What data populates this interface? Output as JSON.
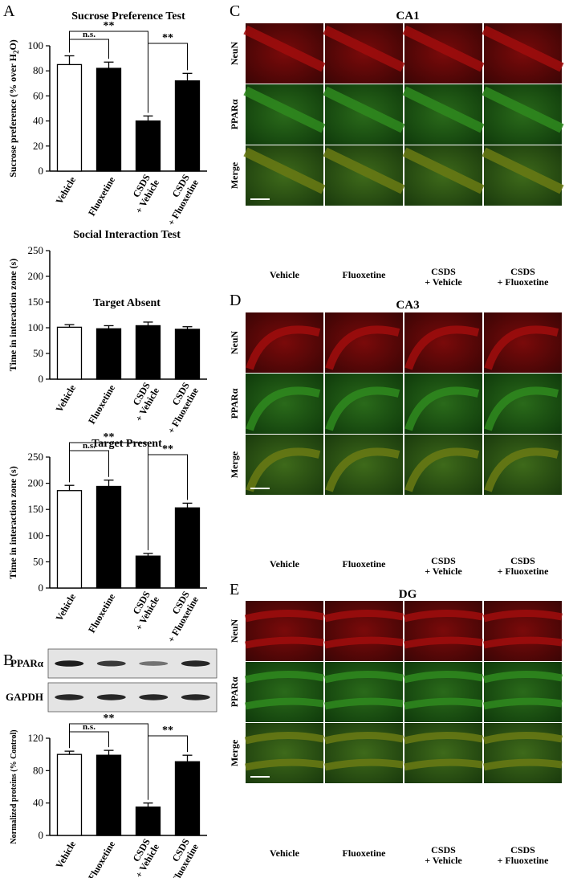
{
  "panel_letters": {
    "A": "A",
    "B": "B",
    "C": "C",
    "D": "D",
    "E": "E"
  },
  "groups": [
    "Vehicle",
    "Fluoxetine",
    "CSDS + Vehicle",
    "CSDS + Fluoxetine"
  ],
  "group_lines": [
    [
      "Vehicle"
    ],
    [
      "Fluoxetine"
    ],
    [
      "CSDS",
      "+ Vehicle"
    ],
    [
      "CSDS",
      "+ Fluoxetine"
    ]
  ],
  "chart_data": [
    {
      "type": "bar",
      "title": "Sucrose Preference Test",
      "ylabel": "Sucrose preference (% over H",
      "ylabel_sub": "2",
      "ylabel_tail": "O)",
      "categories": [
        "Vehicle",
        "Fluoxetine",
        "CSDS + Vehicle",
        "CSDS + Fluoxetine"
      ],
      "values": [
        85,
        82,
        40,
        72
      ],
      "errors": [
        7,
        5,
        4,
        6
      ],
      "bar_fill": [
        "#ffffff",
        "#000000",
        "#000000",
        "#000000"
      ],
      "ylim": [
        0,
        100
      ],
      "yticks": [
        0,
        20,
        40,
        60,
        80,
        100
      ],
      "significance": [
        {
          "from": 0,
          "to": 1,
          "label": "n.s."
        },
        {
          "from": 0,
          "to": 2,
          "label": "**"
        },
        {
          "from": 2,
          "to": 3,
          "label": "**"
        }
      ]
    },
    {
      "type": "bar",
      "title": "Social Interaction Test",
      "subtitle": "Target Absent",
      "ylabel": "Time in interaction zone (s)",
      "categories": [
        "Vehicle",
        "Fluoxetine",
        "CSDS + Vehicle",
        "CSDS + Fluoxetine"
      ],
      "values": [
        101,
        98,
        104,
        97
      ],
      "errors": [
        5,
        6,
        7,
        5
      ],
      "bar_fill": [
        "#ffffff",
        "#000000",
        "#000000",
        "#000000"
      ],
      "ylim": [
        0,
        250
      ],
      "yticks": [
        0,
        50,
        100,
        150,
        200,
        250
      ],
      "significance": []
    },
    {
      "type": "bar",
      "title": "Target Present",
      "ylabel": "Time in interaction zone (s)",
      "categories": [
        "Vehicle",
        "Fluoxetine",
        "CSDS + Vehicle",
        "CSDS + Fluoxetine"
      ],
      "values": [
        186,
        194,
        61,
        153
      ],
      "errors": [
        10,
        12,
        5,
        9
      ],
      "bar_fill": [
        "#ffffff",
        "#000000",
        "#000000",
        "#000000"
      ],
      "ylim": [
        0,
        250
      ],
      "yticks": [
        0,
        50,
        100,
        150,
        200,
        250
      ],
      "significance": [
        {
          "from": 0,
          "to": 1,
          "label": "n.s."
        },
        {
          "from": 0,
          "to": 2,
          "label": "**"
        },
        {
          "from": 2,
          "to": 3,
          "label": "**"
        }
      ]
    },
    {
      "type": "bar",
      "ylabel": "Normalized proteins (% Control)",
      "categories": [
        "Vehicle",
        "Fluoxetine",
        "CSDS + Vehicle",
        "CSDS + Fluoxetine"
      ],
      "values": [
        100,
        99,
        35,
        91
      ],
      "errors": [
        4,
        6,
        5,
        8
      ],
      "bar_fill": [
        "#ffffff",
        "#000000",
        "#000000",
        "#000000"
      ],
      "ylim": [
        0,
        120
      ],
      "yticks": [
        0,
        40,
        80,
        120
      ],
      "significance": [
        {
          "from": 0,
          "to": 1,
          "label": "n.s."
        },
        {
          "from": 0,
          "to": 2,
          "label": "**"
        },
        {
          "from": 2,
          "to": 3,
          "label": "**"
        }
      ]
    }
  ],
  "blot": {
    "rows": [
      {
        "label": "PPARα",
        "intensity": [
          0.9,
          0.75,
          0.45,
          0.85
        ]
      },
      {
        "label": "GAPDH",
        "intensity": [
          0.85,
          0.85,
          0.85,
          0.85
        ]
      }
    ]
  },
  "micrographs": {
    "row_labels": [
      "NeuN",
      "PPARα",
      "Merge"
    ],
    "regions": [
      {
        "letter": "C",
        "title": "CA1"
      },
      {
        "letter": "D",
        "title": "CA3"
      },
      {
        "letter": "E",
        "title": "DG"
      }
    ],
    "colors": {
      "neun": "#a00d0d",
      "ppar": "#2f8a1e",
      "merge": "#6a7a14",
      "neun_bg": "#3a0505",
      "ppar_bg": "#103b0b"
    }
  }
}
